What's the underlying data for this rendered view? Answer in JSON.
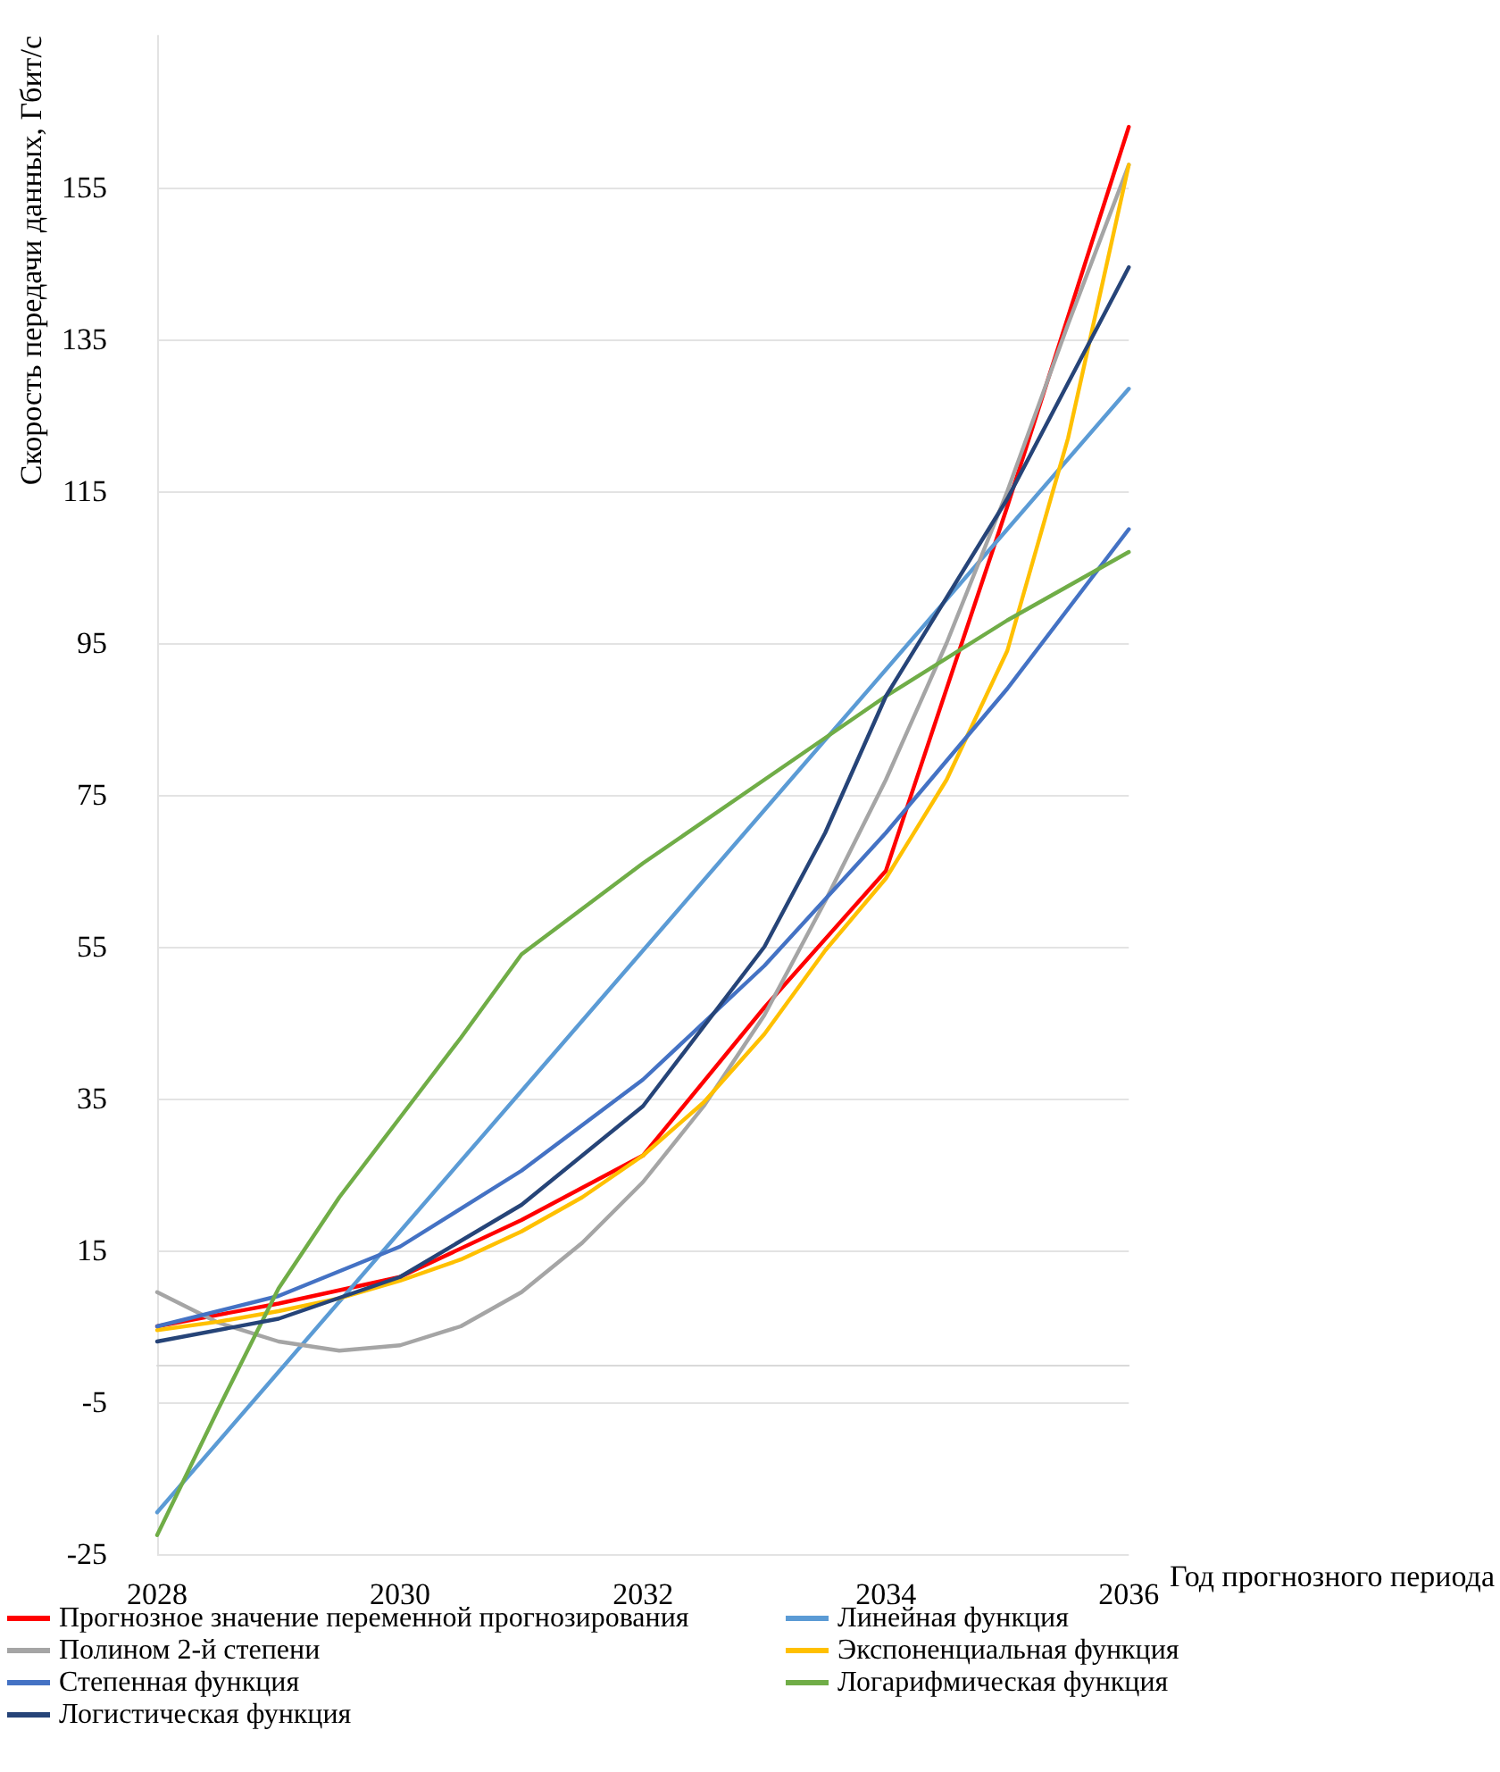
{
  "chart_data": {
    "type": "line",
    "xlabel": "Год прогнозного периода",
    "ylabel": "Скорость передачи данных, Гбит/с",
    "xlim": [
      2028,
      2036
    ],
    "xticks": [
      2028,
      2030,
      2032,
      2034,
      2036
    ],
    "ylim": [
      -25,
      175
    ],
    "yticks": [
      -25,
      -5,
      15,
      35,
      55,
      75,
      95,
      115,
      135,
      155
    ],
    "grid": "y",
    "legend": "bottom",
    "marker": "none",
    "series": [
      {
        "name": "Прогнозное значение переменной прогнозирования",
        "color": "#ff0000",
        "x": [
          2028,
          2029,
          2030,
          2031,
          2032,
          2033,
          2034,
          2035,
          2036
        ],
        "values": [
          5,
          8,
          11.5,
          19,
          27.5,
          47,
          65,
          113,
          163
        ]
      },
      {
        "name": "Линейная функция",
        "color": "#5b9bd5",
        "x": [
          2028,
          2029,
          2030,
          2031,
          2032,
          2033,
          2034,
          2035,
          2036
        ],
        "values": [
          -19.5,
          -1,
          17.5,
          36,
          54.5,
          73,
          91.5,
          110,
          128.5
        ]
      },
      {
        "name": "Полином 2-й степени",
        "color": "#a5a5a5",
        "x": [
          2028,
          2028.5,
          2029,
          2029.5,
          2030,
          2030.5,
          2031,
          2031.5,
          2032,
          2032.5,
          2033,
          2033.5,
          2034,
          2034.5,
          2035,
          2035.5,
          2036
        ],
        "values": [
          9.5,
          5.5,
          3,
          1.8,
          2.5,
          5,
          9.5,
          16,
          24,
          34,
          46,
          61,
          77,
          95,
          115,
          137,
          158
        ]
      },
      {
        "name": "Экспоненциальная функция",
        "color": "#ffc000",
        "x": [
          2028,
          2028.5,
          2029,
          2029.5,
          2030,
          2030.5,
          2031,
          2031.5,
          2032,
          2032.5,
          2033,
          2033.5,
          2034,
          2034.5,
          2035,
          2035.5,
          2036
        ],
        "values": [
          4.5,
          5.6,
          7,
          8.7,
          11,
          13.8,
          17.5,
          22,
          27.5,
          34.5,
          43.5,
          54.5,
          64,
          77,
          94,
          122,
          158
        ]
      },
      {
        "name": "Степенная функция",
        "color": "#4472c4",
        "x": [
          2028,
          2029,
          2030,
          2031,
          2032,
          2033,
          2034,
          2035,
          2036
        ],
        "values": [
          5,
          9,
          15.5,
          25.5,
          37.5,
          52.5,
          70,
          89,
          110
        ]
      },
      {
        "name": "Логарифмическая функция",
        "color": "#70ad47",
        "x": [
          2028,
          2028.5,
          2029,
          2029.5,
          2030,
          2030.5,
          2031,
          2031.5,
          2032,
          2033,
          2034,
          2035,
          2036
        ],
        "values": [
          -22.5,
          -6,
          10,
          22,
          32.5,
          43,
          54,
          60,
          66,
          77,
          88,
          98,
          107
        ]
      },
      {
        "name": "Логистическая функция",
        "color": "#264478",
        "x": [
          2028,
          2029,
          2030,
          2031,
          2032,
          2033,
          2033.5,
          2034,
          2035,
          2036
        ],
        "values": [
          3,
          6,
          11.5,
          21,
          34,
          55,
          70,
          88,
          114,
          144.5
        ]
      }
    ]
  }
}
